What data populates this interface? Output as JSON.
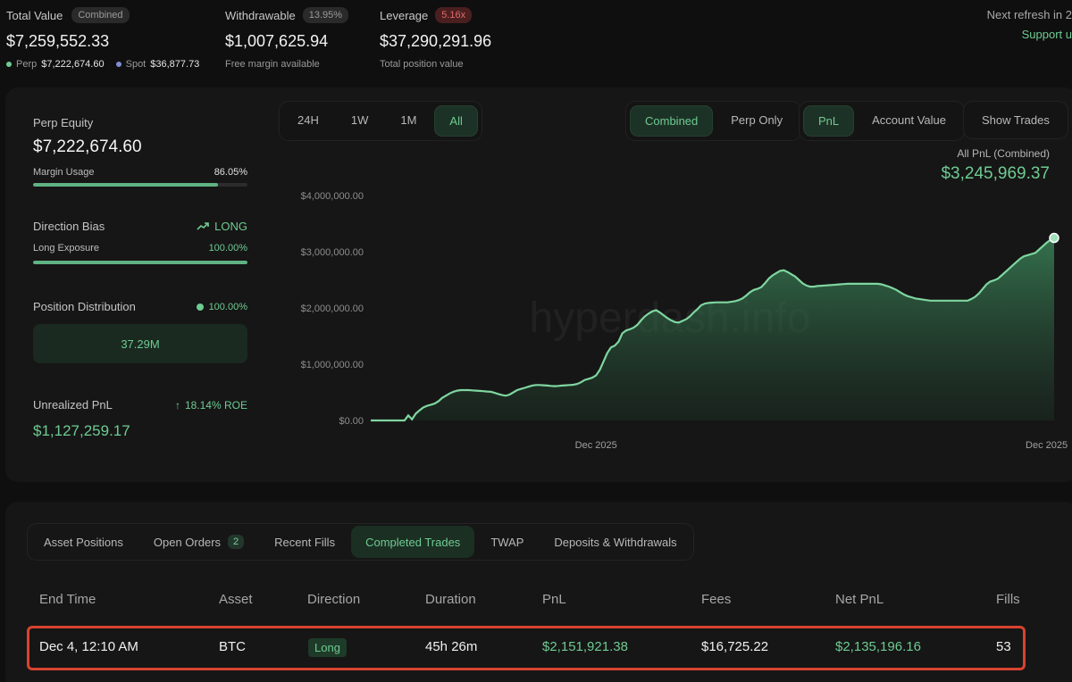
{
  "summary": {
    "total_value": {
      "label": "Total Value",
      "badge": "Combined",
      "value": "$7,259,552.33",
      "perp_label": "Perp",
      "perp_value": "$7,222,674.60",
      "spot_label": "Spot",
      "spot_value": "$36,877.73"
    },
    "withdrawable": {
      "label": "Withdrawable",
      "badge": "13.95%",
      "value": "$1,007,625.94",
      "sub": "Free margin available"
    },
    "leverage": {
      "label": "Leverage",
      "badge": "5.16x",
      "value": "$37,290,291.96",
      "sub": "Total position value"
    },
    "refresh_text": "Next refresh in 2",
    "support_link": "Support u"
  },
  "left_panel": {
    "perp_equity_label": "Perp Equity",
    "perp_equity_value": "$7,222,674.60",
    "margin_usage_label": "Margin Usage",
    "margin_usage_value": "86.05%",
    "margin_usage_fraction": 0.8605,
    "direction_bias_label": "Direction Bias",
    "direction_bias_value": "LONG",
    "long_exposure_label": "Long Exposure",
    "long_exposure_value": "100.00%",
    "long_exposure_fraction": 1.0,
    "position_dist_label": "Position Distribution",
    "position_dist_value": "100.00%",
    "position_dist_box": "37.29M",
    "unrealized_label": "Unrealized PnL",
    "roe_value": "18.14% ROE",
    "unrealized_value": "$1,127,259.17"
  },
  "chart_controls": {
    "ranges": [
      "24H",
      "1W",
      "1M",
      "All"
    ],
    "active_range": "All",
    "modes": [
      "Combined",
      "Perp Only"
    ],
    "active_mode": "Combined",
    "metrics": [
      "PnL",
      "Account Value"
    ],
    "active_metric": "PnL",
    "show_trades": "Show Trades"
  },
  "chart_header": {
    "label": "All PnL (Combined)",
    "value": "$3,245,969.37"
  },
  "watermark": "hyperdash.info",
  "chart_data": {
    "type": "area",
    "ylim": [
      0,
      4000000
    ],
    "yticks": [
      "$4,000,000.00",
      "$3,000,000.00",
      "$2,000,000.00",
      "$1,000,000.00",
      "$0.00"
    ],
    "ytick_values": [
      4000000,
      3000000,
      2000000,
      1000000,
      0
    ],
    "xtick_labels": [
      "Dec 2025",
      "Dec 2025"
    ],
    "xtick_index": [
      60,
      180
    ],
    "series": [
      {
        "values": [
          0,
          0,
          0,
          0,
          0,
          0,
          0,
          0,
          0,
          0,
          90000,
          20000,
          120000,
          180000,
          230000,
          260000,
          280000,
          300000,
          340000,
          400000,
          440000,
          480000,
          510000,
          530000,
          540000,
          540000,
          540000,
          535000,
          530000,
          525000,
          520000,
          515000,
          510000,
          490000,
          470000,
          450000,
          440000,
          460000,
          500000,
          540000,
          560000,
          580000,
          600000,
          620000,
          630000,
          630000,
          625000,
          620000,
          615000,
          610000,
          615000,
          620000,
          625000,
          630000,
          635000,
          650000,
          680000,
          720000,
          740000,
          760000,
          800000,
          900000,
          1050000,
          1200000,
          1300000,
          1330000,
          1400000,
          1550000,
          1600000,
          1620000,
          1650000,
          1700000,
          1780000,
          1850000,
          1900000,
          1940000,
          1960000,
          1920000,
          1870000,
          1820000,
          1780000,
          1750000,
          1740000,
          1770000,
          1800000,
          1850000,
          1920000,
          1980000,
          2050000,
          2080000,
          2090000,
          2095000,
          2100000,
          2100000,
          2100000,
          2100000,
          2110000,
          2120000,
          2140000,
          2170000,
          2220000,
          2280000,
          2320000,
          2340000,
          2370000,
          2440000,
          2520000,
          2580000,
          2620000,
          2660000,
          2670000,
          2640000,
          2600000,
          2560000,
          2500000,
          2440000,
          2400000,
          2380000,
          2380000,
          2390000,
          2395000,
          2400000,
          2405000,
          2410000,
          2415000,
          2420000,
          2425000,
          2430000,
          2430000,
          2430000,
          2430000,
          2430000,
          2430000,
          2430000,
          2430000,
          2430000,
          2420000,
          2400000,
          2380000,
          2350000,
          2320000,
          2280000,
          2240000,
          2210000,
          2190000,
          2170000,
          2160000,
          2150000,
          2140000,
          2130000,
          2130000,
          2130000,
          2130000,
          2130000,
          2130000,
          2130000,
          2130000,
          2130000,
          2130000,
          2130000,
          2160000,
          2200000,
          2260000,
          2340000,
          2420000,
          2470000,
          2490000,
          2520000,
          2580000,
          2640000,
          2700000,
          2760000,
          2820000,
          2880000,
          2920000,
          2940000,
          2960000,
          2980000,
          3040000,
          3100000,
          3160000,
          3210000,
          3245969
        ]
      }
    ]
  },
  "tabs": {
    "items": [
      "Asset Positions",
      "Open Orders",
      "Recent Fills",
      "Completed Trades",
      "TWAP",
      "Deposits & Withdrawals"
    ],
    "open_orders_count": "2",
    "active": "Completed Trades"
  },
  "table": {
    "headers": [
      "End Time",
      "Asset",
      "Direction",
      "Duration",
      "PnL",
      "Fees",
      "Net PnL",
      "Fills"
    ],
    "rows": [
      {
        "end_time": "Dec 4, 12:10 AM",
        "asset": "BTC",
        "direction": "Long",
        "duration": "45h 26m",
        "pnl": "$2,151,921.38",
        "fees": "$16,725.22",
        "net_pnl": "$2,135,196.16",
        "fills": "53"
      }
    ]
  },
  "colors": {
    "accent_green": "#6ecb92",
    "line_green": "#7fd6a0",
    "highlight_red": "#d8432f",
    "leverage_red": "#e06b6b"
  }
}
